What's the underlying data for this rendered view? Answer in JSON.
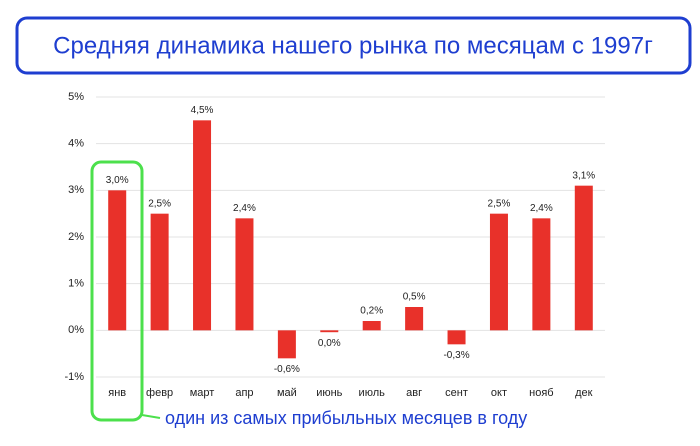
{
  "chart_data": {
    "type": "bar",
    "title": "Средняя динамика нашего рынка по месяцам с 1997г",
    "annotation": "один из самых прибыльных месяцев в году",
    "categories": [
      "янв",
      "февр",
      "март",
      "апр",
      "май",
      "июнь",
      "июль",
      "авг",
      "сент",
      "окт",
      "нояб",
      "дек"
    ],
    "values": [
      3.0,
      2.5,
      4.5,
      2.4,
      -0.6,
      -0.04,
      0.2,
      0.5,
      -0.3,
      2.5,
      2.4,
      3.1
    ],
    "value_labels": [
      "3,0%",
      "2,5%",
      "4,5%",
      "2,4%",
      "-0,6%",
      "0,0%",
      "0,2%",
      "0,5%",
      "-0,3%",
      "2,5%",
      "2,4%",
      "3,1%"
    ],
    "color": "#e8312a",
    "ylim": [
      -1,
      5
    ],
    "yticks": [
      {
        "value": -1,
        "label": "-1%"
      },
      {
        "value": 0,
        "label": "0%"
      },
      {
        "value": 1,
        "label": "1%"
      },
      {
        "value": 2,
        "label": "2%"
      },
      {
        "value": 3,
        "label": "3%"
      },
      {
        "value": 4,
        "label": "4%"
      },
      {
        "value": 5,
        "label": "5%"
      }
    ],
    "grid": true
  }
}
